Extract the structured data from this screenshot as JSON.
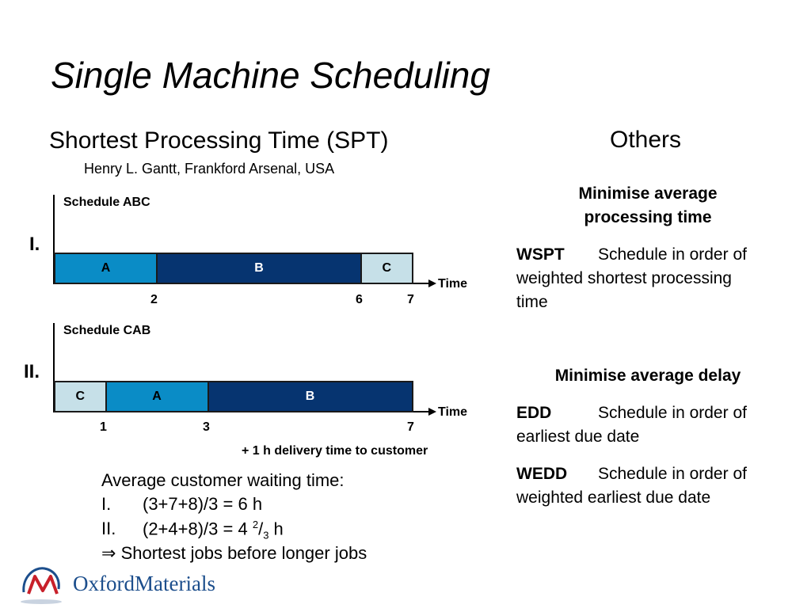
{
  "title": "Single Machine Scheduling",
  "left": {
    "heading": "Shortest Processing Time (SPT)",
    "subheading": "Henry L. Gantt, Frankford Arsenal, USA",
    "schedule1": {
      "roman": "I.",
      "label": "Schedule ABC",
      "bars": [
        {
          "job": "A",
          "start": 0,
          "end": 2
        },
        {
          "job": "B",
          "start": 2,
          "end": 6
        },
        {
          "job": "C",
          "start": 6,
          "end": 7
        }
      ],
      "ticks": [
        "2",
        "6",
        "7"
      ],
      "axis_label": "Time"
    },
    "schedule2": {
      "roman": "II.",
      "label": "Schedule CAB",
      "bars": [
        {
          "job": "C",
          "start": 0,
          "end": 1
        },
        {
          "job": "A",
          "start": 1,
          "end": 3
        },
        {
          "job": "B",
          "start": 3,
          "end": 7
        }
      ],
      "ticks": [
        "1",
        "3",
        "7"
      ],
      "axis_label": "Time"
    },
    "delivery_note": "+ 1 h delivery time to customer",
    "waiting": {
      "heading": "Average customer waiting time:",
      "line1_roman": "I.",
      "line1_text": "(3+7+8)/3 = 6 h",
      "line2_roman": "II.",
      "line2_prefix": "(2+4+8)/3 = 4 ",
      "line2_num": "2",
      "line2_slash": "/",
      "line2_den": "3",
      "line2_unit": " h",
      "conclusion_symbol": "⇒",
      "conclusion": "Shortest jobs before longer jobs"
    }
  },
  "right": {
    "heading": "Others",
    "section1_heading_line1": "Minimise average",
    "section1_heading_line2": "processing time",
    "wspt_term": "WSPT",
    "wspt_line1": "Schedule in order of",
    "wspt_line2": "weighted shortest processing",
    "wspt_line3": "time",
    "section2_heading": "Minimise average delay",
    "edd_term": "EDD",
    "edd_line1": "Schedule in order of",
    "edd_line2": "earliest due date",
    "wedd_term": "WEDD",
    "wedd_line1": "Schedule in order of",
    "wedd_line2": "weighted earliest due date"
  },
  "logo": {
    "text_part1": "Oxford",
    "text_part2": "Materials",
    "colors": {
      "navy": "#1c4e8c",
      "red": "#c8202a",
      "bar_A": "#0a8cc6",
      "bar_B": "#063470",
      "bar_C": "#c6e0e8"
    }
  }
}
